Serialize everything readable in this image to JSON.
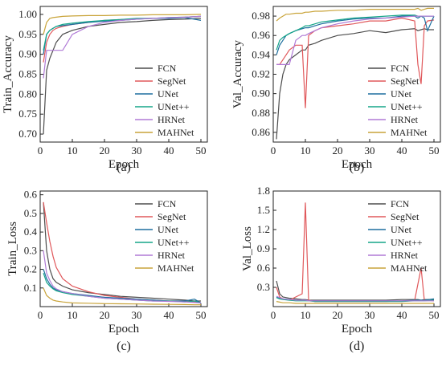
{
  "colors": {
    "FCN": "#4d4d4d",
    "SegNet": "#e0585b",
    "UNet": "#1f6f9f",
    "UNet++": "#16a589",
    "HRNet": "#b07ad6",
    "MAHNet": "#c9a43a"
  },
  "chart_data": [
    {
      "type": "line",
      "panel_label": "(a)",
      "xlabel": "Epoch",
      "ylabel": "Train_Accuracy",
      "xlim": [
        0,
        52
      ],
      "ylim": [
        0.68,
        1.02
      ],
      "xticks": [
        0,
        10,
        20,
        30,
        40,
        50
      ],
      "yticks": [
        0.7,
        0.75,
        0.8,
        0.85,
        0.9,
        0.95,
        1.0
      ],
      "yformat": 2,
      "legend_position": "bottom-right",
      "grid": false,
      "x": [
        1,
        2,
        3,
        4,
        5,
        7,
        10,
        15,
        20,
        25,
        30,
        35,
        40,
        45,
        50
      ],
      "series": [
        {
          "name": "FCN",
          "values": [
            0.7,
            0.86,
            0.89,
            0.91,
            0.93,
            0.95,
            0.96,
            0.97,
            0.975,
            0.98,
            0.982,
            0.985,
            0.987,
            0.988,
            0.99
          ]
        },
        {
          "name": "SegNet",
          "values": [
            0.88,
            0.93,
            0.95,
            0.96,
            0.965,
            0.97,
            0.975,
            0.98,
            0.985,
            0.987,
            0.989,
            0.99,
            0.991,
            0.993,
            0.995
          ]
        },
        {
          "name": "UNet",
          "values": [
            0.9,
            0.95,
            0.96,
            0.965,
            0.97,
            0.972,
            0.975,
            0.98,
            0.983,
            0.985,
            0.988,
            0.99,
            0.99,
            0.992,
            0.985
          ]
        },
        {
          "name": "UNet++",
          "values": [
            0.91,
            0.95,
            0.96,
            0.965,
            0.97,
            0.975,
            0.978,
            0.982,
            0.985,
            0.987,
            0.99,
            0.99,
            0.992,
            0.993,
            0.995
          ]
        },
        {
          "name": "HRNet",
          "values": [
            0.84,
            0.91,
            0.91,
            0.91,
            0.91,
            0.91,
            0.95,
            0.97,
            0.98,
            0.985,
            0.988,
            0.99,
            0.992,
            0.993,
            0.995
          ]
        },
        {
          "name": "MAHNet",
          "values": [
            0.95,
            0.98,
            0.99,
            0.992,
            0.993,
            0.995,
            0.996,
            0.997,
            0.997,
            0.998,
            0.998,
            0.999,
            0.999,
            0.999,
            1.0
          ]
        }
      ]
    },
    {
      "type": "line",
      "panel_label": "(b)",
      "xlabel": "Epoch",
      "ylabel": "Val_Accuracy",
      "xlim": [
        0,
        52
      ],
      "ylim": [
        0.85,
        0.99
      ],
      "xticks": [
        0,
        10,
        20,
        30,
        40,
        50
      ],
      "yticks": [
        0.86,
        0.88,
        0.9,
        0.92,
        0.94,
        0.96,
        0.98
      ],
      "yformat": 2,
      "legend_position": "bottom-right",
      "grid": false,
      "x": [
        1,
        2,
        3,
        4,
        5,
        7,
        9,
        10,
        11,
        13,
        15,
        20,
        25,
        30,
        35,
        40,
        44,
        45,
        46,
        47,
        48,
        50
      ],
      "series": [
        {
          "name": "FCN",
          "values": [
            0.853,
            0.9,
            0.92,
            0.93,
            0.935,
            0.94,
            0.945,
            0.945,
            0.95,
            0.952,
            0.955,
            0.96,
            0.962,
            0.965,
            0.963,
            0.966,
            0.967,
            0.965,
            0.966,
            0.967,
            0.966,
            0.966
          ]
        },
        {
          "name": "SegNet",
          "values": [
            0.93,
            0.93,
            0.935,
            0.94,
            0.945,
            0.95,
            0.95,
            0.885,
            0.96,
            0.965,
            0.968,
            0.97,
            0.972,
            0.975,
            0.975,
            0.978,
            0.975,
            0.93,
            0.91,
            0.97,
            0.975,
            0.976
          ]
        },
        {
          "name": "UNet",
          "values": [
            0.94,
            0.95,
            0.955,
            0.96,
            0.962,
            0.965,
            0.967,
            0.968,
            0.968,
            0.97,
            0.972,
            0.975,
            0.977,
            0.978,
            0.978,
            0.98,
            0.98,
            0.978,
            0.98,
            0.978,
            0.965,
            0.98
          ]
        },
        {
          "name": "UNet++",
          "values": [
            0.945,
            0.955,
            0.958,
            0.96,
            0.962,
            0.965,
            0.968,
            0.97,
            0.97,
            0.972,
            0.974,
            0.976,
            0.978,
            0.979,
            0.98,
            0.981,
            0.981,
            0.98,
            0.98,
            0.98,
            0.98,
            0.98
          ]
        },
        {
          "name": "HRNet",
          "values": [
            0.93,
            0.93,
            0.93,
            0.93,
            0.93,
            0.955,
            0.96,
            0.96,
            0.962,
            0.965,
            0.968,
            0.972,
            0.975,
            0.977,
            0.978,
            0.979,
            0.98,
            0.98,
            0.98,
            0.98,
            0.98,
            0.98
          ]
        },
        {
          "name": "MAHNet",
          "values": [
            0.975,
            0.978,
            0.98,
            0.982,
            0.982,
            0.983,
            0.983,
            0.984,
            0.984,
            0.985,
            0.985,
            0.986,
            0.986,
            0.987,
            0.987,
            0.987,
            0.987,
            0.988,
            0.986,
            0.987,
            0.988,
            0.988
          ]
        }
      ]
    },
    {
      "type": "line",
      "panel_label": "(c)",
      "xlabel": "Epoch",
      "ylabel": "Train_Loss",
      "xlim": [
        0,
        52
      ],
      "ylim": [
        0,
        0.62
      ],
      "xticks": [
        0,
        10,
        20,
        30,
        40,
        50
      ],
      "yticks": [
        0.1,
        0.2,
        0.3,
        0.4,
        0.5,
        0.6
      ],
      "yformat": 1,
      "legend_position": "top-right",
      "grid": false,
      "x": [
        1,
        2,
        3,
        4,
        5,
        7,
        10,
        15,
        20,
        25,
        30,
        35,
        40,
        45,
        48,
        50
      ],
      "series": [
        {
          "name": "FCN",
          "values": [
            0.56,
            0.3,
            0.2,
            0.15,
            0.13,
            0.11,
            0.09,
            0.075,
            0.065,
            0.055,
            0.05,
            0.045,
            0.04,
            0.035,
            0.03,
            0.03
          ]
        },
        {
          "name": "SegNet",
          "values": [
            0.56,
            0.45,
            0.35,
            0.27,
            0.21,
            0.15,
            0.11,
            0.08,
            0.06,
            0.05,
            0.04,
            0.035,
            0.03,
            0.03,
            0.025,
            0.02
          ]
        },
        {
          "name": "UNet",
          "values": [
            0.2,
            0.15,
            0.12,
            0.1,
            0.09,
            0.08,
            0.07,
            0.06,
            0.05,
            0.045,
            0.04,
            0.035,
            0.03,
            0.03,
            0.04,
            0.02
          ]
        },
        {
          "name": "UNet++",
          "values": [
            0.18,
            0.13,
            0.11,
            0.095,
            0.085,
            0.075,
            0.065,
            0.055,
            0.045,
            0.04,
            0.035,
            0.03,
            0.03,
            0.025,
            0.03,
            0.02
          ]
        },
        {
          "name": "HRNet",
          "values": [
            0.3,
            0.18,
            0.14,
            0.11,
            0.095,
            0.08,
            0.07,
            0.055,
            0.045,
            0.04,
            0.035,
            0.03,
            0.028,
            0.025,
            0.022,
            0.02
          ]
        },
        {
          "name": "MAHNet",
          "values": [
            0.1,
            0.06,
            0.045,
            0.035,
            0.03,
            0.025,
            0.02,
            0.018,
            0.016,
            0.015,
            0.014,
            0.013,
            0.012,
            0.011,
            0.01,
            0.01
          ]
        }
      ]
    },
    {
      "type": "line",
      "panel_label": "(d)",
      "xlabel": "Epoch",
      "ylabel": "Val_Loss",
      "xlim": [
        0,
        52
      ],
      "ylim": [
        0,
        1.8
      ],
      "xticks": [
        0,
        10,
        20,
        30,
        40,
        50
      ],
      "yticks": [
        0.3,
        0.6,
        0.9,
        1.2,
        1.5,
        1.8
      ],
      "yformat": 1,
      "legend_position": "top-right",
      "grid": false,
      "x": [
        1,
        2,
        3,
        5,
        7,
        9,
        10,
        11,
        13,
        15,
        20,
        25,
        30,
        35,
        40,
        44,
        45,
        46,
        47,
        50
      ],
      "series": [
        {
          "name": "FCN",
          "values": [
            0.4,
            0.2,
            0.15,
            0.13,
            0.12,
            0.11,
            0.11,
            0.1,
            0.1,
            0.1,
            0.1,
            0.1,
            0.1,
            0.1,
            0.11,
            0.11,
            0.11,
            0.1,
            0.11,
            0.11
          ]
        },
        {
          "name": "SegNet",
          "values": [
            0.3,
            0.15,
            0.12,
            0.1,
            0.15,
            0.2,
            1.62,
            0.1,
            0.08,
            0.08,
            0.08,
            0.08,
            0.08,
            0.08,
            0.09,
            0.1,
            0.35,
            0.6,
            0.1,
            0.09
          ]
        },
        {
          "name": "UNet",
          "values": [
            0.15,
            0.13,
            0.12,
            0.11,
            0.1,
            0.1,
            0.1,
            0.09,
            0.09,
            0.09,
            0.09,
            0.09,
            0.09,
            0.09,
            0.09,
            0.1,
            0.1,
            0.1,
            0.1,
            0.12
          ]
        },
        {
          "name": "UNet++",
          "values": [
            0.14,
            0.12,
            0.11,
            0.1,
            0.09,
            0.09,
            0.09,
            0.09,
            0.08,
            0.08,
            0.08,
            0.08,
            0.08,
            0.08,
            0.08,
            0.09,
            0.09,
            0.09,
            0.09,
            0.1
          ]
        },
        {
          "name": "HRNet",
          "values": [
            0.16,
            0.14,
            0.12,
            0.11,
            0.1,
            0.1,
            0.1,
            0.09,
            0.09,
            0.09,
            0.09,
            0.09,
            0.09,
            0.09,
            0.09,
            0.09,
            0.09,
            0.09,
            0.09,
            0.09
          ]
        },
        {
          "name": "MAHNet",
          "values": [
            0.08,
            0.07,
            0.06,
            0.06,
            0.05,
            0.05,
            0.05,
            0.05,
            0.05,
            0.05,
            0.05,
            0.05,
            0.05,
            0.05,
            0.05,
            0.05,
            0.05,
            0.05,
            0.05,
            0.05
          ]
        }
      ]
    }
  ]
}
